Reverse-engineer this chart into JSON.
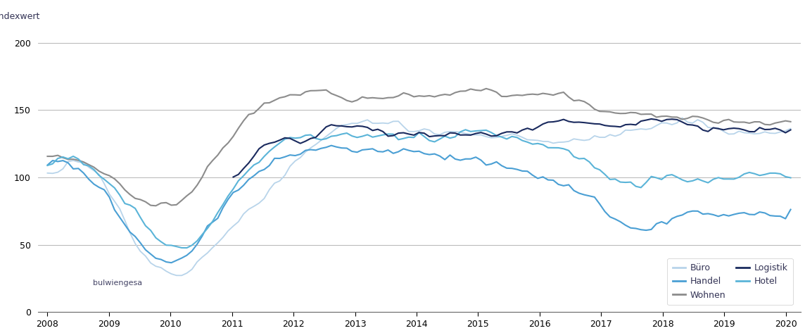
{
  "ylabel": "Indexwert",
  "ylim": [
    0,
    210
  ],
  "yticks": [
    0,
    50,
    100,
    150,
    200
  ],
  "xlim": [
    2007.85,
    2020.25
  ],
  "xticks": [
    2008,
    2009,
    2010,
    2011,
    2012,
    2013,
    2014,
    2015,
    2016,
    2017,
    2018,
    2019,
    2020
  ],
  "colors": {
    "buero": "#b8d4ea",
    "handel": "#4a9fd4",
    "wohnen": "#8c8c8c",
    "logistik": "#1a2a5e",
    "hotel": "#5ab4d8"
  },
  "watermark": "bulwiengesa",
  "series_months": 145,
  "series_start": 2008.0,
  "series_end": 2020.08,
  "buero": [
    100,
    102,
    105,
    108,
    112,
    114,
    112,
    110,
    108,
    105,
    101,
    96,
    90,
    83,
    76,
    68,
    60,
    52,
    46,
    41,
    37,
    34,
    31,
    29,
    27,
    27,
    28,
    30,
    33,
    37,
    41,
    45,
    49,
    53,
    57,
    61,
    65,
    68,
    71,
    74,
    78,
    82,
    86,
    90,
    94,
    98,
    102,
    106,
    110,
    114,
    118,
    122,
    126,
    129,
    131,
    133,
    135,
    137,
    138,
    139,
    140,
    141,
    141,
    140,
    140,
    140,
    139,
    139,
    138,
    137,
    137,
    136,
    135,
    135,
    134,
    134,
    134,
    133,
    133,
    133,
    133,
    133,
    132,
    131,
    131,
    130,
    130,
    130,
    130,
    130,
    130,
    130,
    130,
    129,
    128,
    127,
    127,
    127,
    126,
    126,
    126,
    126,
    127,
    127,
    128,
    129,
    130,
    130,
    131,
    132,
    132,
    133,
    134,
    135,
    136,
    137,
    137,
    138,
    139,
    139,
    140,
    140,
    140,
    141,
    141,
    141,
    140,
    139,
    138,
    137,
    136,
    135,
    134,
    133,
    133,
    133,
    133,
    133,
    133,
    133,
    133,
    133,
    133,
    133,
    135
  ],
  "handel": [
    110,
    113,
    114,
    113,
    111,
    109,
    107,
    104,
    101,
    97,
    93,
    88,
    83,
    77,
    71,
    65,
    60,
    55,
    51,
    47,
    44,
    41,
    39,
    38,
    38,
    39,
    41,
    44,
    48,
    52,
    57,
    62,
    67,
    72,
    77,
    82,
    87,
    91,
    95,
    98,
    101,
    104,
    107,
    109,
    111,
    113,
    115,
    116,
    117,
    118,
    119,
    120,
    121,
    122,
    122,
    122,
    122,
    122,
    121,
    121,
    121,
    121,
    121,
    121,
    121,
    121,
    121,
    120,
    120,
    120,
    120,
    119,
    119,
    118,
    118,
    117,
    117,
    116,
    116,
    115,
    115,
    114,
    113,
    113,
    112,
    111,
    110,
    109,
    108,
    107,
    106,
    105,
    104,
    103,
    102,
    100,
    99,
    98,
    97,
    96,
    95,
    93,
    91,
    89,
    87,
    84,
    81,
    78,
    75,
    72,
    70,
    68,
    66,
    64,
    63,
    62,
    62,
    63,
    64,
    66,
    68,
    70,
    71,
    72,
    73,
    73,
    73,
    73,
    73,
    73,
    73,
    73,
    73,
    73,
    73,
    73,
    73,
    73,
    73,
    73,
    73,
    73,
    73,
    73,
    75
  ],
  "wohnen": [
    113,
    114,
    116,
    116,
    115,
    114,
    113,
    112,
    110,
    108,
    106,
    103,
    100,
    97,
    94,
    91,
    88,
    86,
    84,
    82,
    81,
    80,
    80,
    80,
    80,
    81,
    83,
    86,
    90,
    95,
    100,
    106,
    112,
    118,
    123,
    128,
    133,
    138,
    142,
    146,
    149,
    152,
    155,
    157,
    159,
    160,
    161,
    162,
    163,
    163,
    163,
    163,
    163,
    163,
    163,
    162,
    161,
    160,
    159,
    158,
    158,
    158,
    158,
    158,
    158,
    159,
    159,
    160,
    161,
    161,
    161,
    160,
    160,
    159,
    159,
    159,
    160,
    161,
    162,
    163,
    164,
    165,
    165,
    165,
    165,
    165,
    164,
    164,
    163,
    163,
    162,
    162,
    162,
    162,
    162,
    162,
    162,
    162,
    162,
    161,
    161,
    160,
    158,
    157,
    155,
    153,
    151,
    150,
    149,
    148,
    148,
    148,
    148,
    148,
    148,
    147,
    146,
    146,
    145,
    145,
    145,
    145,
    145,
    145,
    145,
    145,
    145,
    144,
    143,
    142,
    141,
    141,
    141,
    141,
    141,
    141,
    141,
    141,
    141,
    141,
    141,
    141,
    141,
    141,
    141
  ],
  "logistik": [
    null,
    null,
    null,
    null,
    null,
    null,
    null,
    null,
    null,
    null,
    null,
    null,
    null,
    null,
    null,
    null,
    null,
    null,
    null,
    null,
    null,
    null,
    null,
    null,
    null,
    null,
    null,
    null,
    null,
    null,
    null,
    null,
    null,
    null,
    null,
    null,
    100,
    103,
    107,
    112,
    117,
    121,
    124,
    127,
    128,
    128,
    128,
    127,
    126,
    126,
    127,
    128,
    130,
    133,
    136,
    138,
    139,
    140,
    140,
    139,
    138,
    137,
    136,
    135,
    134,
    133,
    133,
    133,
    133,
    133,
    133,
    133,
    133,
    132,
    132,
    132,
    132,
    132,
    132,
    132,
    132,
    132,
    132,
    132,
    132,
    132,
    132,
    132,
    132,
    133,
    134,
    135,
    136,
    137,
    138,
    139,
    140,
    141,
    142,
    143,
    144,
    144,
    143,
    142,
    141,
    140,
    139,
    138,
    137,
    136,
    136,
    137,
    138,
    139,
    140,
    141,
    142,
    143,
    143,
    143,
    143,
    142,
    141,
    140,
    139,
    138,
    137,
    136,
    136,
    136,
    136,
    136,
    136,
    136,
    136,
    136,
    136,
    136,
    136,
    136,
    136,
    136,
    136,
    136,
    137
  ],
  "hotel": [
    108,
    110,
    112,
    113,
    114,
    114,
    113,
    111,
    109,
    106,
    103,
    100,
    96,
    92,
    88,
    83,
    79,
    74,
    70,
    65,
    61,
    57,
    54,
    51,
    49,
    47,
    47,
    48,
    50,
    53,
    57,
    62,
    68,
    74,
    80,
    86,
    91,
    96,
    100,
    104,
    108,
    112,
    116,
    119,
    122,
    124,
    126,
    128,
    129,
    130,
    130,
    130,
    130,
    130,
    130,
    130,
    130,
    130,
    130,
    130,
    130,
    130,
    131,
    131,
    131,
    131,
    131,
    131,
    131,
    131,
    131,
    130,
    130,
    129,
    129,
    129,
    129,
    130,
    130,
    131,
    132,
    133,
    133,
    133,
    133,
    133,
    133,
    132,
    131,
    130,
    130,
    129,
    128,
    127,
    126,
    125,
    124,
    123,
    122,
    121,
    120,
    119,
    117,
    115,
    113,
    110,
    107,
    104,
    101,
    99,
    98,
    97,
    96,
    96,
    96,
    96,
    97,
    98,
    99,
    100,
    100,
    100,
    100,
    100,
    100,
    100,
    100,
    100,
    100,
    100,
    100,
    100,
    100,
    100,
    100,
    100,
    100,
    100,
    100,
    100,
    100,
    100,
    100,
    100,
    102
  ]
}
